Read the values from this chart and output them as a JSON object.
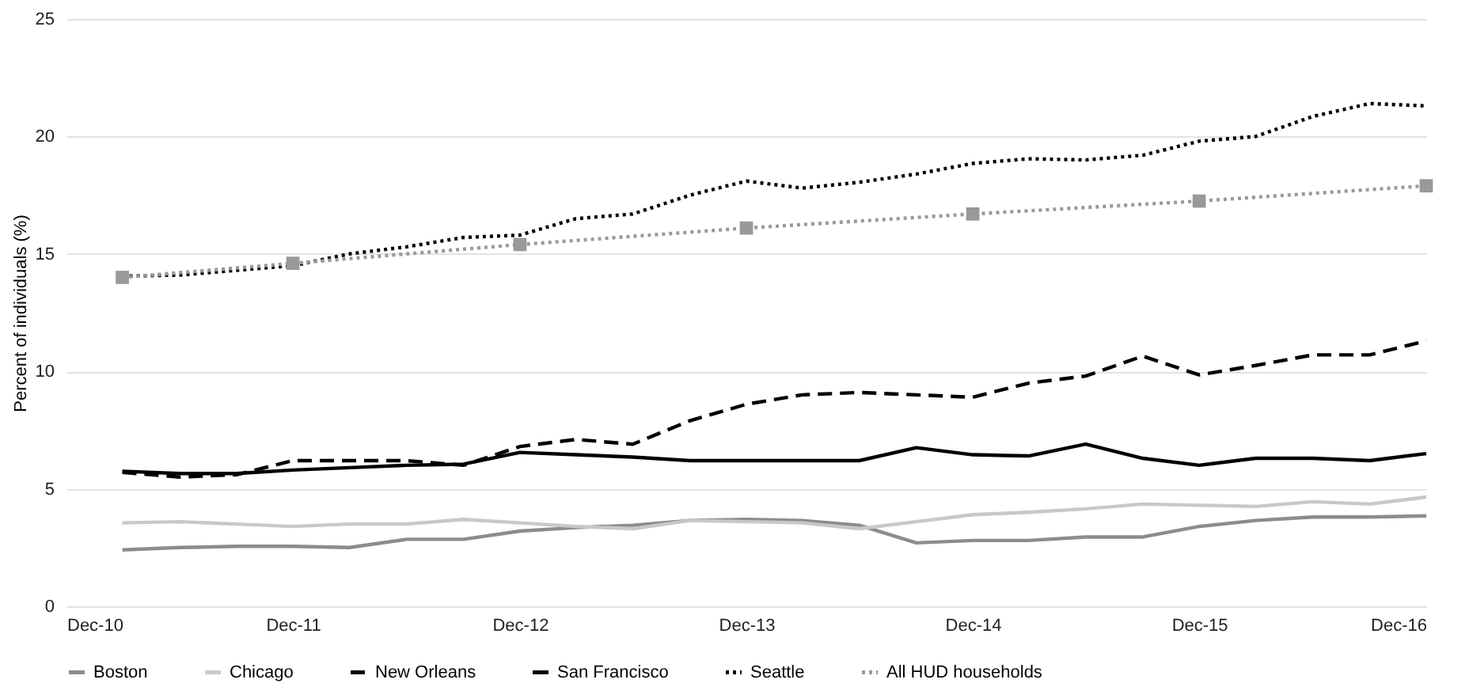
{
  "chart_data": {
    "type": "line",
    "ylabel": "Percent of individuals (%)",
    "x": [
      "2011-03",
      "2011-06",
      "2011-09",
      "2011-12",
      "2012-03",
      "2012-06",
      "2012-09",
      "2012-12",
      "2013-03",
      "2013-06",
      "2013-09",
      "2013-12",
      "2014-03",
      "2014-06",
      "2014-09",
      "2014-12",
      "2015-03",
      "2015-06",
      "2015-09",
      "2015-12",
      "2016-03",
      "2016-06",
      "2016-09",
      "2016-12"
    ],
    "series": [
      {
        "name": "Boston",
        "color": "#8c8c8c",
        "line_style": "solid",
        "values": [
          2.4,
          2.5,
          2.55,
          2.55,
          2.5,
          2.85,
          2.85,
          3.2,
          3.35,
          3.45,
          3.65,
          3.7,
          3.65,
          3.45,
          2.7,
          2.8,
          2.8,
          2.95,
          2.95,
          3.4,
          3.65,
          3.8,
          3.8,
          3.85
        ]
      },
      {
        "name": "Chicago",
        "color": "#c8c8c8",
        "line_style": "solid",
        "values": [
          3.55,
          3.6,
          3.5,
          3.4,
          3.5,
          3.5,
          3.7,
          3.55,
          3.4,
          3.3,
          3.65,
          3.6,
          3.55,
          3.3,
          3.6,
          3.9,
          4.0,
          4.15,
          4.35,
          4.3,
          4.25,
          4.45,
          4.35,
          4.65
        ]
      },
      {
        "name": "New Orleans",
        "color": "#000000",
        "line_style": "dashed",
        "values": [
          5.7,
          5.5,
          5.6,
          6.2,
          6.2,
          6.2,
          6.0,
          6.8,
          7.1,
          6.9,
          7.9,
          8.6,
          9.0,
          9.1,
          9.0,
          8.9,
          9.5,
          9.8,
          10.65,
          9.85,
          10.25,
          10.7,
          10.7,
          11.3
        ]
      },
      {
        "name": "San Francisco",
        "color": "#000000",
        "line_style": "solid",
        "values": [
          5.75,
          5.65,
          5.65,
          5.8,
          5.9,
          6.0,
          6.05,
          6.55,
          6.45,
          6.35,
          6.2,
          6.2,
          6.2,
          6.2,
          6.75,
          6.45,
          6.4,
          6.9,
          6.3,
          6.0,
          6.3,
          6.3,
          6.2,
          6.5
        ]
      },
      {
        "name": "Seattle",
        "color": "#000000",
        "line_style": "dotted",
        "values": [
          14.05,
          14.1,
          14.3,
          14.5,
          15.0,
          15.3,
          15.7,
          15.8,
          16.5,
          16.7,
          17.5,
          18.1,
          17.8,
          18.05,
          18.4,
          18.85,
          19.05,
          19.0,
          19.2,
          19.8,
          20.0,
          20.85,
          21.4,
          21.3
        ]
      },
      {
        "name": "All HUD households",
        "color": "#999999",
        "line_style": "dotted",
        "marker": "square",
        "x": [
          "2011-03",
          "2011-12",
          "2012-12",
          "2013-12",
          "2014-12",
          "2015-12",
          "2016-12"
        ],
        "values": [
          14.0,
          14.6,
          15.4,
          16.1,
          16.7,
          17.25,
          17.9
        ]
      }
    ],
    "xlim": [
      "2010-12",
      "2016-12"
    ],
    "xticks": [
      {
        "value": "2010-12",
        "label": "Dec-10"
      },
      {
        "value": "2011-12",
        "label": "Dec-11"
      },
      {
        "value": "2012-12",
        "label": "Dec-12"
      },
      {
        "value": "2013-12",
        "label": "Dec-13"
      },
      {
        "value": "2014-12",
        "label": "Dec-14"
      },
      {
        "value": "2015-12",
        "label": "Dec-15"
      },
      {
        "value": "2016-12",
        "label": "Dec-16"
      }
    ],
    "ylim": [
      0,
      25
    ],
    "yticks": [
      0,
      5,
      10,
      15,
      20,
      25
    ],
    "grid": "y",
    "legend": "bottom"
  }
}
